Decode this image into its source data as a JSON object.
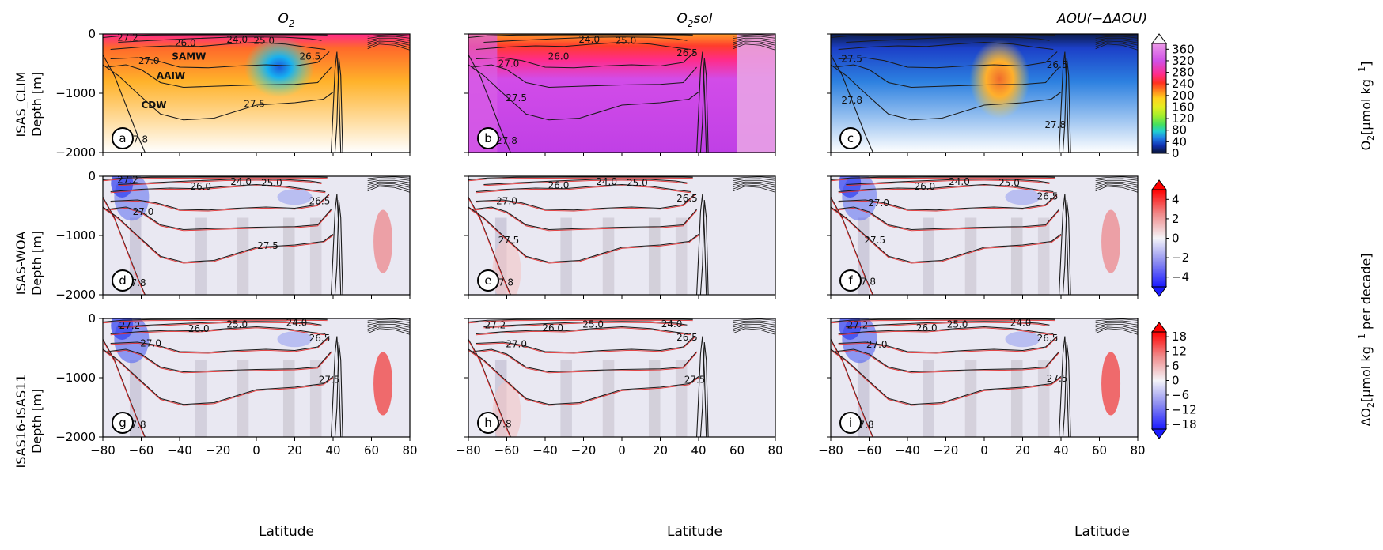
{
  "figure": {
    "column_titles": [
      {
        "base": "O",
        "sub": "2",
        "rest": ""
      },
      {
        "base": "O",
        "sub": "2",
        "rest": "sol"
      },
      {
        "base": "AOU(−ΔAOU)",
        "sub": "",
        "rest": ""
      }
    ],
    "row_labels": [
      [
        "ISAS_CLIM",
        "Depth [m]"
      ],
      [
        "ISAS-WOA",
        "Depth [m]"
      ],
      [
        "ISAS16-ISAS11",
        "Depth [m]"
      ]
    ],
    "xlabel": "Latitude",
    "panel_letters": [
      "a",
      "b",
      "c",
      "d",
      "e",
      "f",
      "g",
      "h",
      "i"
    ],
    "water_masses": [
      "SAMW",
      "AAIW",
      "CDW"
    ],
    "colorbars": [
      {
        "label_parts": [
          "O",
          "2",
          "[μmol kg",
          "−1",
          "]"
        ],
        "ticks": [
          0,
          40,
          80,
          120,
          160,
          200,
          240,
          280,
          320,
          360
        ],
        "range": [
          0,
          380
        ]
      },
      {
        "label_parts": [],
        "ticks": [
          -4,
          -2,
          0,
          2,
          4
        ],
        "range": [
          -5,
          5
        ]
      },
      {
        "label_parts": [
          "ΔO",
          "2",
          "[μmol kg",
          "−1",
          " per decade]"
        ],
        "ticks": [
          -18,
          -12,
          -6,
          0,
          6,
          12,
          18
        ],
        "range": [
          -20,
          20
        ]
      }
    ]
  },
  "chart_data": {
    "type": "heatmap",
    "x": {
      "range": [
        -80,
        80
      ],
      "ticks": [
        -80,
        -60,
        -40,
        -20,
        0,
        20,
        40,
        60,
        80
      ]
    },
    "y": {
      "range": [
        -2000,
        0
      ],
      "ticks": [
        0,
        -1000,
        -2000
      ]
    },
    "contour_levels": [
      "24.0",
      "25.0",
      "26.0",
      "26.5",
      "27.0",
      "27.2",
      "27.5",
      "27.8"
    ],
    "contour_labels": [
      [
        {
          "text": "27.2",
          "lat": -67,
          "depth": -60
        },
        {
          "text": "26.0",
          "lat": -37,
          "depth": -150
        },
        {
          "text": "24.0",
          "lat": -10,
          "depth": -90
        },
        {
          "text": "25.0",
          "lat": 4,
          "depth": -110
        },
        {
          "text": "27.0",
          "lat": -56,
          "depth": -450
        },
        {
          "text": "26.5",
          "lat": 28,
          "depth": -380
        },
        {
          "text": "27.5",
          "lat": -1,
          "depth": -1180
        },
        {
          "text": "27.8",
          "lat": -62,
          "depth": -1780
        }
      ],
      [
        {
          "text": "26.0",
          "lat": -33,
          "depth": -380
        },
        {
          "text": "24.0",
          "lat": -17,
          "depth": -90
        },
        {
          "text": "25.0",
          "lat": 2,
          "depth": -110
        },
        {
          "text": "27.0",
          "lat": -59,
          "depth": -500
        },
        {
          "text": "26.5",
          "lat": 34,
          "depth": -320
        },
        {
          "text": "27.5",
          "lat": -55,
          "depth": -1080
        },
        {
          "text": "27.8",
          "lat": -60,
          "depth": -1800
        }
      ],
      [
        {
          "text": "27.5",
          "lat": -69,
          "depth": -420
        },
        {
          "text": "26.5",
          "lat": 38,
          "depth": -520
        },
        {
          "text": "27.8",
          "lat": -69,
          "depth": -1120
        },
        {
          "text": "27.8",
          "lat": 37,
          "depth": -1530
        }
      ],
      [
        {
          "text": "27.2",
          "lat": -67,
          "depth": -60
        },
        {
          "text": "26.0",
          "lat": -29,
          "depth": -170
        },
        {
          "text": "24.0",
          "lat": -8,
          "depth": -90
        },
        {
          "text": "25.0",
          "lat": 8,
          "depth": -110
        },
        {
          "text": "27.0",
          "lat": -59,
          "depth": -600
        },
        {
          "text": "26.5",
          "lat": 33,
          "depth": -420
        },
        {
          "text": "27.5",
          "lat": 6,
          "depth": -1170
        },
        {
          "text": "27.8",
          "lat": -63,
          "depth": -1800
        }
      ],
      [
        {
          "text": "26.0",
          "lat": -33,
          "depth": -150
        },
        {
          "text": "24.0",
          "lat": -8,
          "depth": -90
        },
        {
          "text": "25.0",
          "lat": 8,
          "depth": -110
        },
        {
          "text": "27.0",
          "lat": -60,
          "depth": -420
        },
        {
          "text": "26.5",
          "lat": 34,
          "depth": -370
        },
        {
          "text": "27.5",
          "lat": -59,
          "depth": -1080
        },
        {
          "text": "27.8",
          "lat": -62,
          "depth": -1790
        }
      ],
      [
        {
          "text": "26.0",
          "lat": -31,
          "depth": -170
        },
        {
          "text": "24.0",
          "lat": -13,
          "depth": -90
        },
        {
          "text": "25.0",
          "lat": 13,
          "depth": -110
        },
        {
          "text": "27.0",
          "lat": -55,
          "depth": -450
        },
        {
          "text": "26.5",
          "lat": 33,
          "depth": -340
        },
        {
          "text": "27.5",
          "lat": -57,
          "depth": -1080
        },
        {
          "text": "27.8",
          "lat": -62,
          "depth": -1780
        }
      ],
      [
        {
          "text": "27.2",
          "lat": -66,
          "depth": -120
        },
        {
          "text": "26.0",
          "lat": -30,
          "depth": -170
        },
        {
          "text": "25.0",
          "lat": -10,
          "depth": -100
        },
        {
          "text": "24.0",
          "lat": 21,
          "depth": -70
        },
        {
          "text": "27.0",
          "lat": -55,
          "depth": -420
        },
        {
          "text": "26.5",
          "lat": 33,
          "depth": -330
        },
        {
          "text": "27.5",
          "lat": 38,
          "depth": -1030
        },
        {
          "text": "27.8",
          "lat": -63,
          "depth": -1790
        }
      ],
      [
        {
          "text": "27.2",
          "lat": -66,
          "depth": -110
        },
        {
          "text": "26.0",
          "lat": -36,
          "depth": -160
        },
        {
          "text": "25.0",
          "lat": -15,
          "depth": -100
        },
        {
          "text": "24.0",
          "lat": 26,
          "depth": -90
        },
        {
          "text": "27.0",
          "lat": -55,
          "depth": -430
        },
        {
          "text": "26.5",
          "lat": 34,
          "depth": -320
        },
        {
          "text": "27.5",
          "lat": 38,
          "depth": -1030
        },
        {
          "text": "27.8",
          "lat": -63,
          "depth": -1780
        }
      ],
      [
        {
          "text": "27.2",
          "lat": -66,
          "depth": -110
        },
        {
          "text": "26.0",
          "lat": -30,
          "depth": -160
        },
        {
          "text": "25.0",
          "lat": -14,
          "depth": -100
        },
        {
          "text": "24.0",
          "lat": 19,
          "depth": -70
        },
        {
          "text": "27.0",
          "lat": -56,
          "depth": -440
        },
        {
          "text": "26.5",
          "lat": 33,
          "depth": -330
        },
        {
          "text": "27.5",
          "lat": 38,
          "depth": -1010
        },
        {
          "text": "27.8",
          "lat": -63,
          "depth": -1790
        }
      ]
    ],
    "water_mass_positions": [
      {
        "lat": -44,
        "depth": -430
      },
      {
        "lat": -52,
        "depth": -760
      },
      {
        "lat": -60,
        "depth": -1250
      }
    ]
  }
}
